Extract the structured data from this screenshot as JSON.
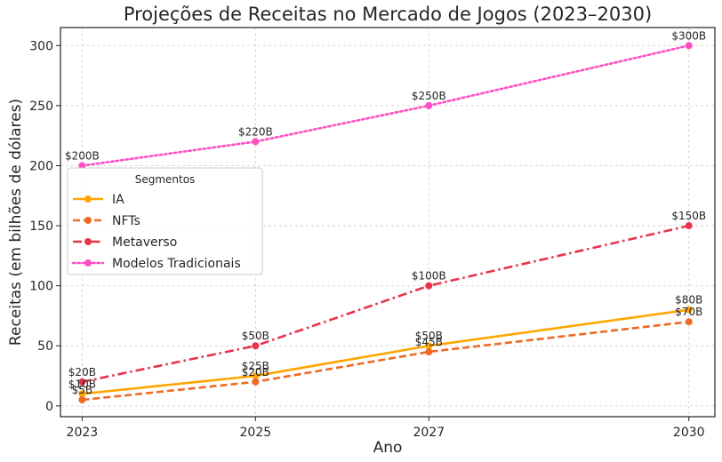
{
  "chart_data": {
    "type": "line",
    "title": "Projeções de Receitas no Mercado de Jogos (2023–2030)",
    "xlabel": "Ano",
    "ylabel": "Receitas (em bilhões de dólares)",
    "x": [
      2023,
      2025,
      2027,
      2030
    ],
    "x_tick_labels": [
      "2023",
      "2025",
      "2027",
      "2030"
    ],
    "xlim": [
      2022.75,
      2030.3
    ],
    "ylim": [
      -9,
      315
    ],
    "y_ticks": [
      0,
      50,
      100,
      150,
      200,
      250,
      300
    ],
    "grid": true,
    "legend": {
      "title": "Segmentos",
      "placement": "center-left"
    },
    "series": [
      {
        "name": "IA",
        "values": [
          10,
          25,
          50,
          80
        ],
        "labels": [
          "$10B",
          "$25B",
          "$50B",
          "$80B"
        ],
        "color": "#FFA500",
        "line_style": "solid"
      },
      {
        "name": "NFTs",
        "values": [
          5,
          20,
          45,
          70
        ],
        "labels": [
          "$5B",
          "$20B",
          "$45B",
          "$70B"
        ],
        "color": "#EE6A25",
        "line_style": "dashed"
      },
      {
        "name": "Metaverso",
        "values": [
          20,
          50,
          100,
          150
        ],
        "labels": [
          "$20B",
          "$50B",
          "$100B",
          "$150B"
        ],
        "color": "#E8334A",
        "line_style": "dashdot"
      },
      {
        "name": "Modelos Tradicionais",
        "values": [
          200,
          220,
          250,
          300
        ],
        "labels": [
          "$200B",
          "$220B",
          "$250B",
          "$300B"
        ],
        "color": "#FF4FC3",
        "line_style": "dotted"
      }
    ]
  }
}
